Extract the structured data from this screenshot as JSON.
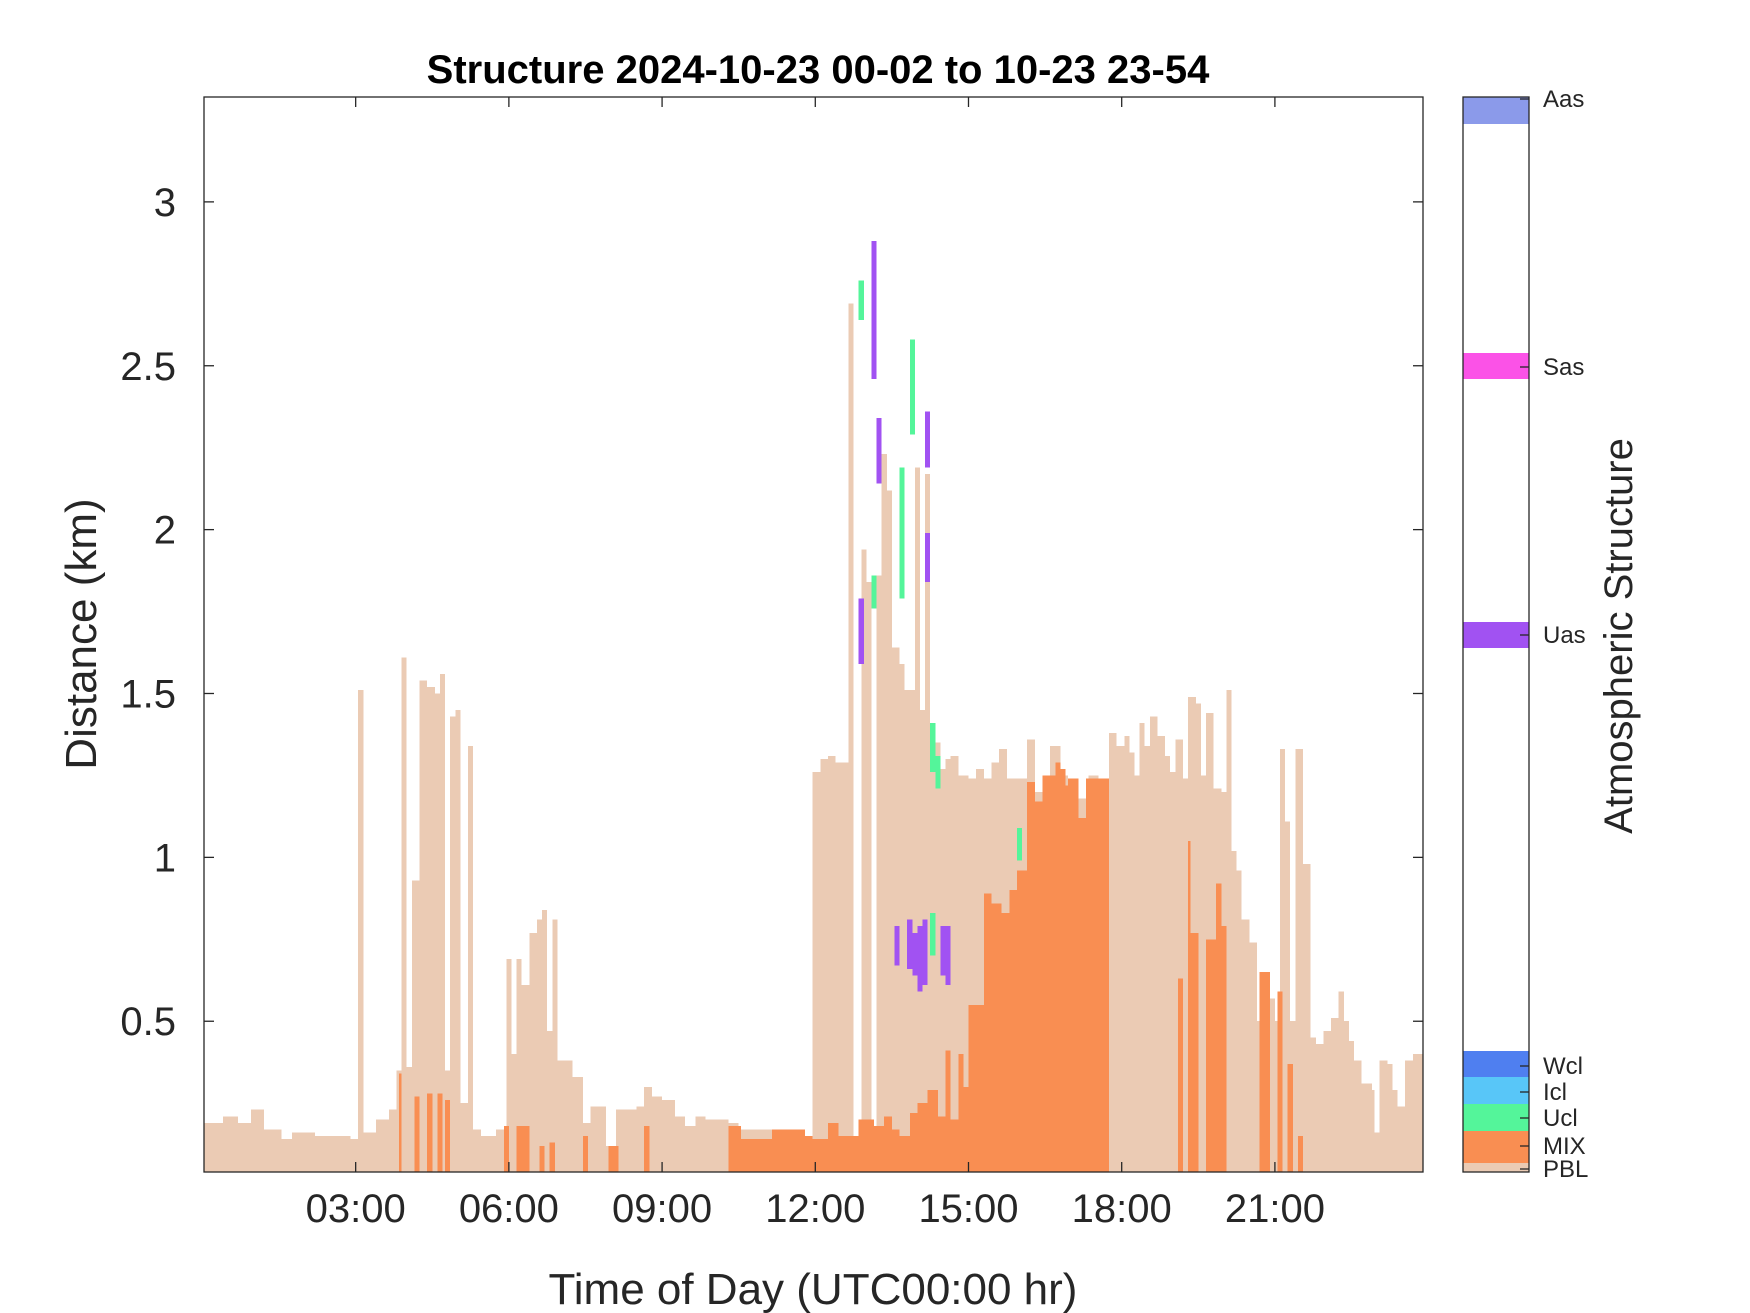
{
  "chart_data": {
    "type": "heatmap",
    "title": "Structure 2024-10-23 00-02 to 10-23 23-54",
    "xlabel": "Time of Day (UTC00:00 hr)",
    "ylabel": "Distance (km)",
    "colorbar_label": "Atmospheric Structure",
    "x_unit": "hours UTC",
    "xlim": [
      0.03,
      23.9
    ],
    "ylim": [
      0.04,
      3.32
    ],
    "x_ticks": [
      3,
      6,
      9,
      12,
      15,
      18,
      21
    ],
    "x_tick_labels": [
      "03:00",
      "06:00",
      "09:00",
      "12:00",
      "15:00",
      "18:00",
      "21:00"
    ],
    "y_ticks": [
      0.5,
      1,
      1.5,
      2,
      2.5,
      3
    ],
    "y_tick_labels": [
      "0.5",
      "1",
      "1.5",
      "2",
      "2.5",
      "3"
    ],
    "grid": false,
    "classes": [
      {
        "code": "PBL",
        "color": "#ebcbb4"
      },
      {
        "code": "MIX",
        "color": "#f98e52"
      },
      {
        "code": "Ucl",
        "color": "#54f59a"
      },
      {
        "code": "Icl",
        "color": "#58c6f8"
      },
      {
        "code": "Wcl",
        "color": "#4f7ff0"
      },
      {
        "code": "Uas",
        "color": "#a152f2"
      },
      {
        "code": "Sas",
        "color": "#fb52e7"
      },
      {
        "code": "Aas",
        "color": "#8b9aea"
      }
    ],
    "pbl_profile": [
      [
        0.03,
        0.19
      ],
      [
        0.4,
        0.21
      ],
      [
        0.7,
        0.19
      ],
      [
        0.95,
        0.23
      ],
      [
        1.2,
        0.17
      ],
      [
        1.55,
        0.14
      ],
      [
        1.75,
        0.16
      ],
      [
        1.95,
        0.16
      ],
      [
        2.2,
        0.15
      ],
      [
        2.9,
        0.14
      ],
      [
        3.05,
        1.51
      ],
      [
        3.15,
        0.16
      ],
      [
        3.4,
        0.2
      ],
      [
        3.65,
        0.23
      ],
      [
        3.8,
        0.35
      ],
      [
        3.9,
        1.61
      ],
      [
        4.0,
        0.36
      ],
      [
        4.1,
        0.93
      ],
      [
        4.25,
        1.54
      ],
      [
        4.4,
        1.52
      ],
      [
        4.55,
        1.5
      ],
      [
        4.65,
        1.56
      ],
      [
        4.75,
        0.35
      ],
      [
        4.85,
        1.43
      ],
      [
        4.95,
        1.45
      ],
      [
        5.05,
        0.25
      ],
      [
        5.2,
        1.34
      ],
      [
        5.3,
        0.17
      ],
      [
        5.45,
        0.15
      ],
      [
        5.75,
        0.17
      ],
      [
        5.95,
        0.69
      ],
      [
        6.05,
        0.4
      ],
      [
        6.15,
        0.69
      ],
      [
        6.25,
        0.61
      ],
      [
        6.4,
        0.77
      ],
      [
        6.55,
        0.81
      ],
      [
        6.65,
        0.84
      ],
      [
        6.75,
        0.47
      ],
      [
        6.85,
        0.81
      ],
      [
        6.95,
        0.38
      ],
      [
        7.25,
        0.33
      ],
      [
        7.45,
        0.19
      ],
      [
        7.6,
        0.24
      ],
      [
        7.9,
        0.12
      ],
      [
        8.1,
        0.23
      ],
      [
        8.5,
        0.24
      ],
      [
        8.65,
        0.3
      ],
      [
        8.8,
        0.27
      ],
      [
        9.0,
        0.26
      ],
      [
        9.25,
        0.21
      ],
      [
        9.45,
        0.18
      ],
      [
        9.65,
        0.21
      ],
      [
        9.85,
        0.2
      ],
      [
        10.3,
        0.19
      ],
      [
        10.5,
        0.17
      ],
      [
        11.45,
        0.15
      ],
      [
        11.95,
        1.26
      ],
      [
        12.1,
        1.3
      ],
      [
        12.25,
        1.31
      ],
      [
        12.4,
        1.29
      ],
      [
        12.65,
        2.69
      ],
      [
        12.75,
        0.15
      ],
      [
        12.9,
        1.94
      ],
      [
        13.0,
        1.84
      ],
      [
        13.1,
        0.14
      ],
      [
        13.2,
        1.86
      ],
      [
        13.3,
        2.23
      ],
      [
        13.4,
        2.12
      ],
      [
        13.5,
        1.64
      ],
      [
        13.65,
        1.59
      ],
      [
        13.75,
        1.51
      ],
      [
        13.85,
        1.51
      ],
      [
        13.95,
        2.19
      ],
      [
        14.05,
        1.45
      ],
      [
        14.15,
        2.17
      ],
      [
        14.25,
        1.35
      ],
      [
        14.45,
        1.27
      ],
      [
        14.55,
        1.3
      ],
      [
        14.65,
        1.31
      ],
      [
        14.8,
        1.25
      ],
      [
        15.0,
        1.24
      ],
      [
        15.15,
        1.27
      ],
      [
        15.3,
        1.24
      ],
      [
        15.45,
        1.29
      ],
      [
        15.6,
        1.33
      ],
      [
        15.75,
        1.24
      ],
      [
        16.15,
        1.36
      ],
      [
        16.3,
        1.2
      ],
      [
        16.6,
        1.34
      ],
      [
        16.8,
        1.25
      ],
      [
        16.95,
        1.22
      ],
      [
        17.1,
        1.18
      ],
      [
        17.35,
        1.25
      ],
      [
        17.55,
        1.21
      ],
      [
        17.75,
        1.38
      ],
      [
        17.9,
        1.34
      ],
      [
        18.05,
        1.37
      ],
      [
        18.15,
        1.32
      ],
      [
        18.25,
        1.25
      ],
      [
        18.35,
        1.41
      ],
      [
        18.45,
        1.34
      ],
      [
        18.55,
        1.43
      ],
      [
        18.7,
        1.37
      ],
      [
        18.85,
        1.31
      ],
      [
        18.95,
        1.26
      ],
      [
        19.05,
        1.36
      ],
      [
        19.2,
        1.24
      ],
      [
        19.3,
        1.49
      ],
      [
        19.45,
        1.47
      ],
      [
        19.55,
        1.25
      ],
      [
        19.65,
        1.44
      ],
      [
        19.8,
        1.21
      ],
      [
        19.95,
        1.2
      ],
      [
        20.05,
        1.51
      ],
      [
        20.15,
        1.02
      ],
      [
        20.25,
        0.96
      ],
      [
        20.35,
        0.81
      ],
      [
        20.5,
        0.74
      ],
      [
        20.65,
        0.5
      ],
      [
        20.75,
        0.48
      ],
      [
        20.85,
        0.57
      ],
      [
        21.0,
        0.5
      ],
      [
        21.1,
        1.33
      ],
      [
        21.2,
        1.11
      ],
      [
        21.3,
        0.5
      ],
      [
        21.4,
        1.33
      ],
      [
        21.55,
        0.98
      ],
      [
        21.7,
        0.45
      ],
      [
        21.8,
        0.43
      ],
      [
        21.95,
        0.47
      ],
      [
        22.1,
        0.51
      ],
      [
        22.25,
        0.59
      ],
      [
        22.35,
        0.5
      ],
      [
        22.45,
        0.44
      ],
      [
        22.55,
        0.38
      ],
      [
        22.7,
        0.31
      ],
      [
        22.9,
        0.29
      ],
      [
        22.95,
        0.16
      ],
      [
        23.05,
        0.38
      ],
      [
        23.2,
        0.37
      ],
      [
        23.3,
        0.29
      ],
      [
        23.4,
        0.24
      ],
      [
        23.55,
        0.38
      ],
      [
        23.7,
        0.4
      ]
    ],
    "mix_profile": [
      [
        3.85,
        0.34
      ],
      [
        3.9,
        0.0
      ],
      [
        4.15,
        0.27
      ],
      [
        4.25,
        0.0
      ],
      [
        4.4,
        0.28
      ],
      [
        4.5,
        0.0
      ],
      [
        4.6,
        0.28
      ],
      [
        4.7,
        0.0
      ],
      [
        4.75,
        0.26
      ],
      [
        4.85,
        0.0
      ],
      [
        5.9,
        0.18
      ],
      [
        6.0,
        0.0
      ],
      [
        6.15,
        0.18
      ],
      [
        6.4,
        0.0
      ],
      [
        6.6,
        0.12
      ],
      [
        6.7,
        0.0
      ],
      [
        6.8,
        0.13
      ],
      [
        6.9,
        0.0
      ],
      [
        7.45,
        0.15
      ],
      [
        7.55,
        0.0
      ],
      [
        7.95,
        0.12
      ],
      [
        8.15,
        0.0
      ],
      [
        8.65,
        0.18
      ],
      [
        8.75,
        0.0
      ],
      [
        10.3,
        0.18
      ],
      [
        10.55,
        0.14
      ],
      [
        11.15,
        0.17
      ],
      [
        11.8,
        0.15
      ],
      [
        11.95,
        0.14
      ],
      [
        12.25,
        0.19
      ],
      [
        12.45,
        0.15
      ],
      [
        12.85,
        0.2
      ],
      [
        13.15,
        0.18
      ],
      [
        13.35,
        0.21
      ],
      [
        13.5,
        0.17
      ],
      [
        13.65,
        0.15
      ],
      [
        13.85,
        0.22
      ],
      [
        14.0,
        0.25
      ],
      [
        14.2,
        0.29
      ],
      [
        14.4,
        0.21
      ],
      [
        14.55,
        0.41
      ],
      [
        14.65,
        0.2
      ],
      [
        14.8,
        0.4
      ],
      [
        14.9,
        0.3
      ],
      [
        15.0,
        0.55
      ],
      [
        15.3,
        0.89
      ],
      [
        15.45,
        0.86
      ],
      [
        15.65,
        0.83
      ],
      [
        15.8,
        0.9
      ],
      [
        15.95,
        0.96
      ],
      [
        16.15,
        1.23
      ],
      [
        16.3,
        1.17
      ],
      [
        16.45,
        1.25
      ],
      [
        16.7,
        1.29
      ],
      [
        16.8,
        1.27
      ],
      [
        16.9,
        1.22
      ],
      [
        16.95,
        1.24
      ],
      [
        17.15,
        1.12
      ],
      [
        17.3,
        1.24
      ],
      [
        17.75,
        0.0
      ],
      [
        19.1,
        0.63
      ],
      [
        19.2,
        0.0
      ],
      [
        19.3,
        1.05
      ],
      [
        19.35,
        0.77
      ],
      [
        19.5,
        0.0
      ],
      [
        19.65,
        0.75
      ],
      [
        19.85,
        0.92
      ],
      [
        19.95,
        0.79
      ],
      [
        20.05,
        0.0
      ],
      [
        20.7,
        0.65
      ],
      [
        20.9,
        0.0
      ],
      [
        21.05,
        0.59
      ],
      [
        21.15,
        0.0
      ],
      [
        21.25,
        0.37
      ],
      [
        21.35,
        0.0
      ],
      [
        21.45,
        0.15
      ],
      [
        21.55,
        0.0
      ],
      [
        23.9,
        0.0
      ]
    ],
    "layers": [
      {
        "class": "Ucl",
        "x": [
          12.85,
          12.95
        ],
        "y": [
          2.64,
          2.76
        ]
      },
      {
        "class": "Uas",
        "x": [
          13.1,
          13.2
        ],
        "y": [
          2.46,
          2.88
        ]
      },
      {
        "class": "Uas",
        "x": [
          13.2,
          13.3
        ],
        "y": [
          2.14,
          2.34
        ]
      },
      {
        "class": "Ucl",
        "x": [
          13.65,
          13.75
        ],
        "y": [
          1.79,
          2.19
        ]
      },
      {
        "class": "Ucl",
        "x": [
          13.85,
          13.95
        ],
        "y": [
          2.29,
          2.58
        ]
      },
      {
        "class": "Uas",
        "x": [
          14.15,
          14.25
        ],
        "y": [
          2.19,
          2.36
        ]
      },
      {
        "class": "Uas",
        "x": [
          14.15,
          14.25
        ],
        "y": [
          1.84,
          1.99
        ]
      },
      {
        "class": "Ucl",
        "x": [
          13.1,
          13.2
        ],
        "y": [
          1.76,
          1.86
        ]
      },
      {
        "class": "Uas",
        "x": [
          12.85,
          12.95
        ],
        "y": [
          1.59,
          1.79
        ]
      },
      {
        "class": "Ucl",
        "x": [
          14.25,
          14.35
        ],
        "y": [
          1.26,
          1.41
        ]
      },
      {
        "class": "Ucl",
        "x": [
          14.35,
          14.45
        ],
        "y": [
          1.21,
          1.31
        ]
      },
      {
        "class": "Ucl",
        "x": [
          15.95,
          16.05
        ],
        "y": [
          0.99,
          1.09
        ]
      },
      {
        "class": "Uas",
        "x": [
          13.55,
          13.65
        ],
        "y": [
          0.67,
          0.79
        ]
      },
      {
        "class": "Uas",
        "x": [
          13.8,
          13.9
        ],
        "y": [
          0.66,
          0.81
        ]
      },
      {
        "class": "Uas",
        "x": [
          13.9,
          14.0
        ],
        "y": [
          0.64,
          0.77
        ]
      },
      {
        "class": "Uas",
        "x": [
          14.0,
          14.1
        ],
        "y": [
          0.59,
          0.79
        ]
      },
      {
        "class": "Uas",
        "x": [
          14.1,
          14.2
        ],
        "y": [
          0.61,
          0.81
        ]
      },
      {
        "class": "Ucl",
        "x": [
          14.25,
          14.35
        ],
        "y": [
          0.7,
          0.83
        ]
      },
      {
        "class": "Uas",
        "x": [
          14.45,
          14.55
        ],
        "y": [
          0.64,
          0.79
        ]
      },
      {
        "class": "Uas",
        "x": [
          14.55,
          14.65
        ],
        "y": [
          0.61,
          0.79
        ]
      }
    ]
  }
}
